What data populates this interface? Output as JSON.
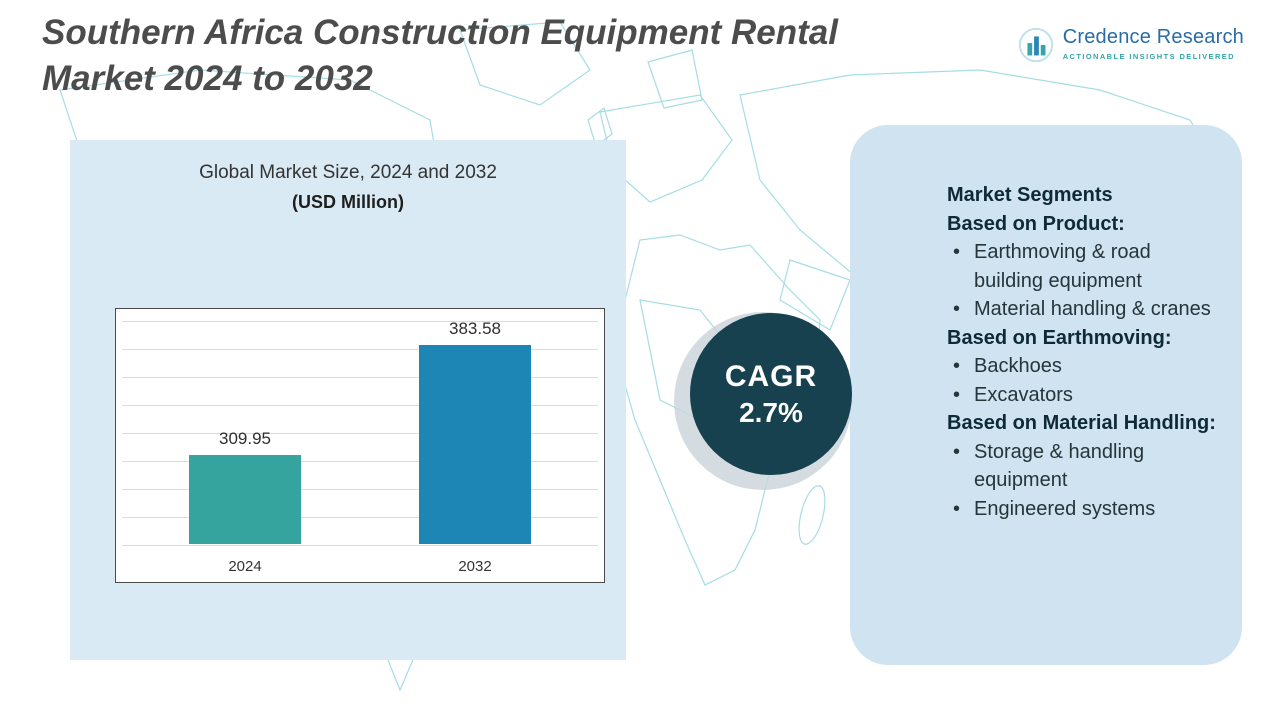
{
  "header": {
    "title_line1": "Southern Africa Construction Equipment Rental",
    "title_line2": "Market 2024 to 2032",
    "logo": {
      "name": "Credence Research",
      "tagline": "Actionable Insights Delivered"
    }
  },
  "chart_panel": {
    "title": "Global Market Size, 2024 and 2032",
    "subtitle": "(USD Million)"
  },
  "chart_data": {
    "type": "bar",
    "title": "Global Market Size, 2024 and 2032 (USD Million)",
    "categories": [
      "2024",
      "2032"
    ],
    "values": [
      309.95,
      383.58
    ],
    "value_labels": [
      "309.95",
      "383.58"
    ],
    "bar_colors": [
      "#35a49f",
      "#1e86b5"
    ],
    "xlabel": "",
    "ylabel": "",
    "ylim": [
      250,
      400
    ],
    "grid": true,
    "legend": false
  },
  "cagr": {
    "label": "CAGR",
    "value": "2.7%"
  },
  "segments_panel": {
    "title": "Market Segments",
    "sections": [
      {
        "heading": "Based on Product:",
        "items": [
          "Earthmoving & road building equipment",
          "Material handling & cranes"
        ]
      },
      {
        "heading": "Based on Earthmoving:",
        "items": [
          "Backhoes",
          "Excavators"
        ]
      },
      {
        "heading": "Based on Material Handling:",
        "items": [
          "Storage & handling equipment",
          "Engineered systems"
        ]
      }
    ]
  },
  "colors": {
    "bar_2024": "#35a49f",
    "bar_2032": "#1e86b5",
    "cagr_circle": "#17414f",
    "left_panel": "#daeaf4",
    "right_panel": "#cfe4f0",
    "map_line": "#a5dde4",
    "logo_blue": "#2a6ca5",
    "logo_teal": "#33a6ad",
    "title_gray": "#4c4c4c"
  }
}
